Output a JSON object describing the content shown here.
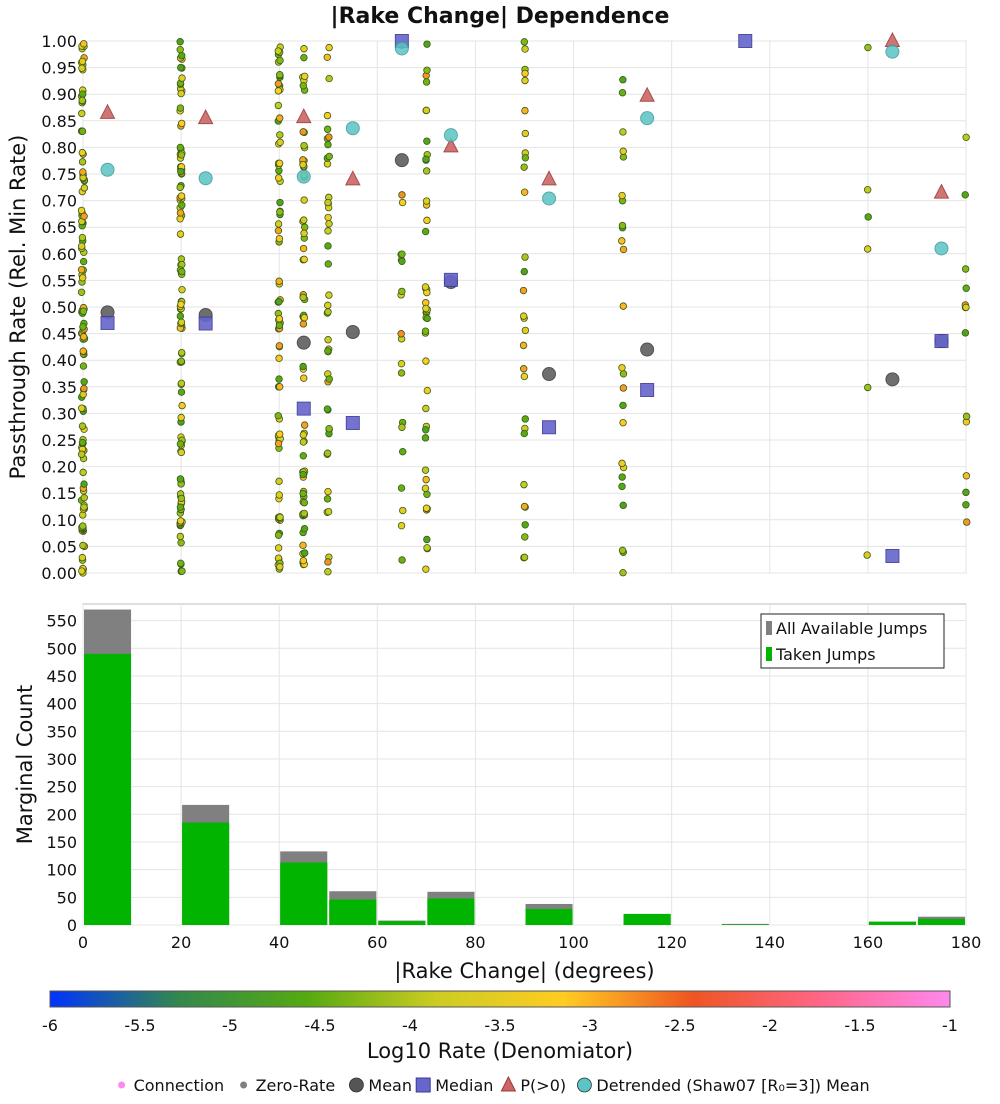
{
  "title": "|Rake Change| Dependence",
  "chart_data": [
    {
      "type": "scatter",
      "ylabel": "Passthrough Rate (Rel. Min Rate)",
      "xlim": [
        0,
        180
      ],
      "ylim": [
        0,
        1
      ],
      "yticks": [
        "0.00",
        "0.05",
        "0.10",
        "0.15",
        "0.20",
        "0.25",
        "0.30",
        "0.35",
        "0.40",
        "0.45",
        "0.50",
        "0.55",
        "0.60",
        "0.65",
        "0.70",
        "0.75",
        "0.80",
        "0.85",
        "0.90",
        "0.95",
        "1.00"
      ],
      "grid": true,
      "point_columns": [
        0,
        20,
        40,
        45,
        50,
        65,
        70,
        90,
        110,
        160,
        180
      ],
      "series": [
        {
          "name": "Mean",
          "marker": "circle",
          "color": "#555555",
          "x": [
            5,
            25,
            45,
            55,
            65,
            75,
            95,
            115,
            165,
            175
          ],
          "y": [
            0.49,
            0.485,
            0.433,
            0.453,
            0.776,
            0.547,
            0.374,
            0.42,
            0.364,
            0.436
          ]
        },
        {
          "name": "Median",
          "marker": "square",
          "color": "#6666cc",
          "x": [
            5,
            25,
            45,
            55,
            65,
            75,
            95,
            115,
            135,
            165,
            175
          ],
          "y": [
            0.47,
            0.469,
            0.309,
            0.282,
            1.0,
            0.551,
            0.274,
            0.344,
            1.0,
            0.032,
            0.436
          ]
        },
        {
          "name": "P(>0)",
          "marker": "triangle",
          "color": "#cc6666",
          "x": [
            5,
            25,
            45,
            55,
            75,
            95,
            115,
            165,
            175
          ],
          "y": [
            0.865,
            0.855,
            0.857,
            0.74,
            0.802,
            0.74,
            0.897,
            1.0,
            0.715
          ]
        },
        {
          "name": "Detrended (Shaw07 [R₀=3]) Mean",
          "marker": "circle",
          "color": "#5bc4c4",
          "x": [
            5,
            25,
            45,
            55,
            65,
            75,
            95,
            115,
            165,
            175
          ],
          "y": [
            0.758,
            0.742,
            0.745,
            0.836,
            0.986,
            0.823,
            0.704,
            0.855,
            0.98,
            0.61
          ]
        }
      ]
    },
    {
      "type": "bar",
      "ylabel": "Marginal Count",
      "xlabel": "|Rake Change| (degrees)",
      "xlim": [
        0,
        180
      ],
      "ylim": [
        0,
        580
      ],
      "xticks": [
        "0",
        "20",
        "40",
        "60",
        "80",
        "100",
        "120",
        "140",
        "160",
        "180"
      ],
      "yticks": [
        "0",
        "50",
        "100",
        "150",
        "200",
        "250",
        "300",
        "350",
        "400",
        "450",
        "500",
        "550"
      ],
      "bin_width": 10,
      "grid": true,
      "legend_position": "top-right",
      "bin_centers": [
        5,
        25,
        45,
        55,
        65,
        75,
        95,
        115,
        135,
        165,
        175
      ],
      "series": [
        {
          "name": "All Available Jumps",
          "color": "#808080",
          "values": [
            570,
            217,
            133,
            61,
            8,
            60,
            38,
            20,
            2,
            6,
            15
          ]
        },
        {
          "name": "Taken Jumps",
          "color": "#00b400",
          "values": [
            490,
            185,
            113,
            46,
            7,
            48,
            29,
            20,
            1,
            6,
            11
          ]
        }
      ]
    }
  ],
  "colorbar": {
    "label": "Log10 Rate (Denomiator)",
    "ticks": [
      "-6",
      "-5.5",
      "-5",
      "-4.5",
      "-4",
      "-3.5",
      "-3",
      "-2.5",
      "-2",
      "-1.5",
      "-1"
    ],
    "range": [
      -6,
      -1
    ],
    "colors": [
      "#0033ff",
      "#33884d",
      "#55aa11",
      "#cccc22",
      "#ffcc22",
      "#ee5522",
      "#ff6688",
      "#ff88ee"
    ]
  },
  "legend": [
    {
      "label": "Connection",
      "marker": "dot",
      "color": "#ff88ee"
    },
    {
      "label": "Zero-Rate",
      "marker": "dot",
      "color": "#808080"
    },
    {
      "label": "Mean",
      "marker": "circle",
      "color": "#555555"
    },
    {
      "label": "Median",
      "marker": "square",
      "color": "#6666cc"
    },
    {
      "label": "P(>0)",
      "marker": "triangle",
      "color": "#cc6666"
    },
    {
      "label": "Detrended (Shaw07 [R₀=3]) Mean",
      "marker": "circle",
      "color": "#5bc4c4"
    }
  ]
}
